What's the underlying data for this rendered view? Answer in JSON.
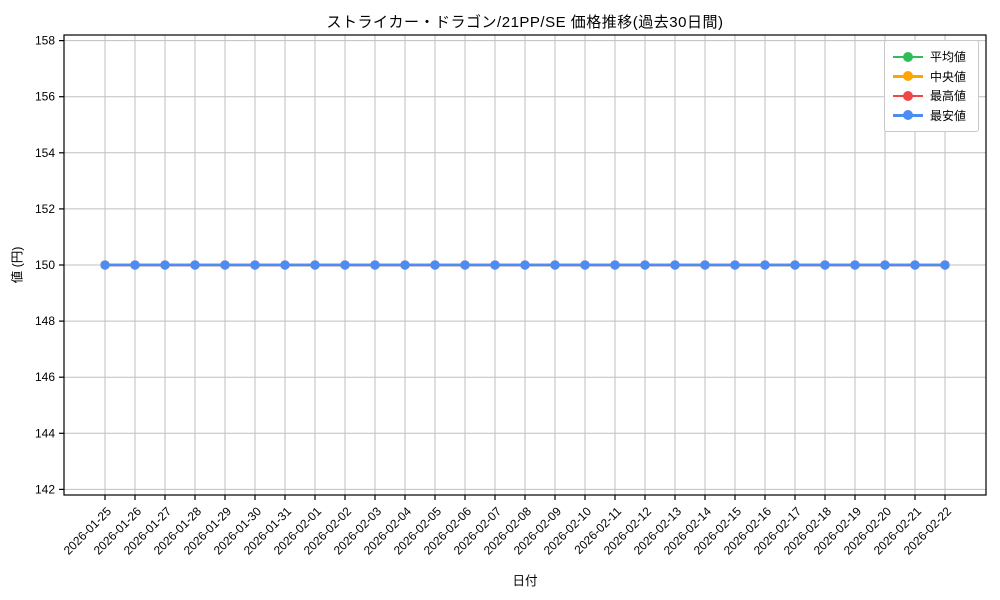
{
  "chart_data": {
    "type": "line",
    "title": "ストライカー・ドラゴン/21PP/SE 価格推移(過去30日間)",
    "xlabel": "日付",
    "ylabel": "値 (円)",
    "categories": [
      "2026-01-25",
      "2026-01-26",
      "2026-01-27",
      "2026-01-28",
      "2026-01-29",
      "2026-01-30",
      "2026-01-31",
      "2026-02-01",
      "2026-02-02",
      "2026-02-03",
      "2026-02-04",
      "2026-02-05",
      "2026-02-06",
      "2026-02-07",
      "2026-02-08",
      "2026-02-09",
      "2026-02-10",
      "2026-02-11",
      "2026-02-12",
      "2026-02-13",
      "2026-02-14",
      "2026-02-15",
      "2026-02-16",
      "2026-02-17",
      "2026-02-18",
      "2026-02-19",
      "2026-02-20",
      "2026-02-21",
      "2026-02-22"
    ],
    "yticks": [
      142,
      144,
      146,
      148,
      150,
      152,
      154,
      156,
      158
    ],
    "ylim": [
      141.8,
      158.2
    ],
    "grid": true,
    "legend_position": "upper right",
    "series": [
      {
        "name": "平均値",
        "color": "#2ebd59",
        "values": [
          150,
          150,
          150,
          150,
          150,
          150,
          150,
          150,
          150,
          150,
          150,
          150,
          150,
          150,
          150,
          150,
          150,
          150,
          150,
          150,
          150,
          150,
          150,
          150,
          150,
          150,
          150,
          150,
          150
        ]
      },
      {
        "name": "中央値",
        "color": "#ffa500",
        "values": [
          150,
          150,
          150,
          150,
          150,
          150,
          150,
          150,
          150,
          150,
          150,
          150,
          150,
          150,
          150,
          150,
          150,
          150,
          150,
          150,
          150,
          150,
          150,
          150,
          150,
          150,
          150,
          150,
          150
        ]
      },
      {
        "name": "最高値",
        "color": "#f04646",
        "values": [
          150,
          150,
          150,
          150,
          150,
          150,
          150,
          150,
          150,
          150,
          150,
          150,
          150,
          150,
          150,
          150,
          150,
          150,
          150,
          150,
          150,
          150,
          150,
          150,
          150,
          150,
          150,
          150,
          150
        ]
      },
      {
        "name": "最安値",
        "color": "#4b8cf5",
        "values": [
          150,
          150,
          150,
          150,
          150,
          150,
          150,
          150,
          150,
          150,
          150,
          150,
          150,
          150,
          150,
          150,
          150,
          150,
          150,
          150,
          150,
          150,
          150,
          150,
          150,
          150,
          150,
          150,
          150
        ]
      }
    ],
    "colors": {
      "grid": "#bfbfbf",
      "spine": "#000000",
      "background": "#ffffff"
    }
  }
}
